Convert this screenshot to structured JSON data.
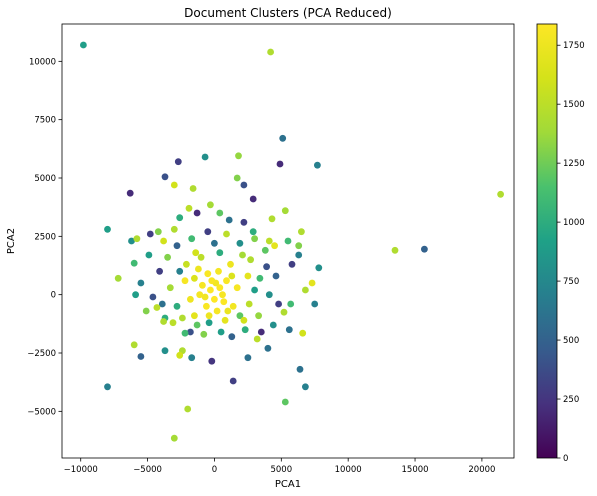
{
  "chart_data": {
    "type": "scatter",
    "title": "Document Clusters (PCA Reduced)",
    "xlabel": "PCA1",
    "ylabel": "PCA2",
    "xlim": [
      -11400,
      22400
    ],
    "ylim": [
      -7000,
      11600
    ],
    "xticks": [
      -10000,
      -5000,
      0,
      5000,
      10000,
      15000,
      20000
    ],
    "yticks": [
      -5000,
      -2500,
      0,
      2500,
      5000,
      7500,
      10000
    ],
    "grid": false,
    "colorbar": {
      "colormap": "viridis",
      "range": [
        0,
        1840
      ],
      "ticks": [
        0,
        250,
        500,
        750,
        1000,
        1250,
        1500,
        1750
      ]
    },
    "points": [
      {
        "x": -9800,
        "y": 10700,
        "c": 900
      },
      {
        "x": 4200,
        "y": 10400,
        "c": 1450
      },
      {
        "x": 5100,
        "y": 6700,
        "c": 600
      },
      {
        "x": 7700,
        "y": 5550,
        "c": 700
      },
      {
        "x": 4900,
        "y": 5600,
        "c": 200
      },
      {
        "x": 21400,
        "y": 4300,
        "c": 1450
      },
      {
        "x": 13500,
        "y": 1900,
        "c": 1450
      },
      {
        "x": 15700,
        "y": 1950,
        "c": 500
      },
      {
        "x": -2700,
        "y": 5700,
        "c": 300
      },
      {
        "x": -700,
        "y": 5900,
        "c": 800
      },
      {
        "x": 1800,
        "y": 5950,
        "c": 1350
      },
      {
        "x": -6300,
        "y": 4350,
        "c": 200
      },
      {
        "x": -3700,
        "y": 5050,
        "c": 400
      },
      {
        "x": -1600,
        "y": 4550,
        "c": 1450
      },
      {
        "x": -3000,
        "y": 4700,
        "c": 1600
      },
      {
        "x": 1700,
        "y": 5000,
        "c": 1300
      },
      {
        "x": 2200,
        "y": 4700,
        "c": 400
      },
      {
        "x": 2900,
        "y": 4100,
        "c": 200
      },
      {
        "x": 4300,
        "y": 3250,
        "c": 1450
      },
      {
        "x": 5300,
        "y": 3600,
        "c": 1400
      },
      {
        "x": -8000,
        "y": 2800,
        "c": 900
      },
      {
        "x": -6200,
        "y": 2300,
        "c": 800
      },
      {
        "x": -5800,
        "y": 2400,
        "c": 1450
      },
      {
        "x": -4800,
        "y": 2600,
        "c": 300
      },
      {
        "x": -4200,
        "y": 2700,
        "c": 1300
      },
      {
        "x": -3800,
        "y": 2300,
        "c": 1600
      },
      {
        "x": -2600,
        "y": 3300,
        "c": 1000
      },
      {
        "x": -1900,
        "y": 3700,
        "c": 1500
      },
      {
        "x": -1300,
        "y": 3500,
        "c": 200
      },
      {
        "x": -300,
        "y": 3850,
        "c": 1400
      },
      {
        "x": 400,
        "y": 3500,
        "c": 1200
      },
      {
        "x": 1100,
        "y": 3200,
        "c": 600
      },
      {
        "x": 2200,
        "y": 3100,
        "c": 300
      },
      {
        "x": 3000,
        "y": 2400,
        "c": 1300
      },
      {
        "x": 4100,
        "y": 2300,
        "c": 1500
      },
      {
        "x": 4500,
        "y": 2100,
        "c": 1700
      },
      {
        "x": 5500,
        "y": 2300,
        "c": 1100
      },
      {
        "x": 6500,
        "y": 2700,
        "c": 1450
      },
      {
        "x": 6300,
        "y": 2100,
        "c": 1300
      },
      {
        "x": 6300,
        "y": 1700,
        "c": 700
      },
      {
        "x": 5800,
        "y": 1300,
        "c": 300
      },
      {
        "x": 7800,
        "y": 1150,
        "c": 800
      },
      {
        "x": 7300,
        "y": 500,
        "c": 1700
      },
      {
        "x": 6800,
        "y": 200,
        "c": 1450
      },
      {
        "x": 7500,
        "y": -400,
        "c": 700
      },
      {
        "x": -7200,
        "y": 700,
        "c": 1400
      },
      {
        "x": -6000,
        "y": 1350,
        "c": 1100
      },
      {
        "x": -5500,
        "y": 500,
        "c": 700
      },
      {
        "x": -5900,
        "y": 0,
        "c": 900
      },
      {
        "x": -4600,
        "y": -100,
        "c": 400
      },
      {
        "x": -4300,
        "y": -550,
        "c": 1500
      },
      {
        "x": -5100,
        "y": -700,
        "c": 1300
      },
      {
        "x": -3700,
        "y": -1000,
        "c": 1000
      },
      {
        "x": -3100,
        "y": -1200,
        "c": 1500
      },
      {
        "x": -3800,
        "y": -1150,
        "c": 1450
      },
      {
        "x": -6000,
        "y": -2150,
        "c": 1450
      },
      {
        "x": -5500,
        "y": -2650,
        "c": 500
      },
      {
        "x": -3700,
        "y": -2400,
        "c": 800
      },
      {
        "x": -2400,
        "y": -2400,
        "c": 1450
      },
      {
        "x": -2600,
        "y": -2600,
        "c": 1600
      },
      {
        "x": -1700,
        "y": -2700,
        "c": 700
      },
      {
        "x": -200,
        "y": -2850,
        "c": 250
      },
      {
        "x": 2500,
        "y": -2700,
        "c": 600
      },
      {
        "x": 4000,
        "y": -2300,
        "c": 600
      },
      {
        "x": 6400,
        "y": -3200,
        "c": 600
      },
      {
        "x": 6800,
        "y": -3950,
        "c": 700
      },
      {
        "x": 1400,
        "y": -3700,
        "c": 300
      },
      {
        "x": 5300,
        "y": -4600,
        "c": 1200
      },
      {
        "x": -8000,
        "y": -3950,
        "c": 700
      },
      {
        "x": -2000,
        "y": -4900,
        "c": 1450
      },
      {
        "x": -3000,
        "y": -6150,
        "c": 1400
      },
      {
        "x": 6600,
        "y": -1650,
        "c": 1600
      },
      {
        "x": 5600,
        "y": -1500,
        "c": 600
      },
      {
        "x": 5200,
        "y": -750,
        "c": 1450
      },
      {
        "x": 5700,
        "y": -400,
        "c": 1100
      },
      {
        "x": 4400,
        "y": -1300,
        "c": 800
      },
      {
        "x": 3500,
        "y": -1600,
        "c": 200
      },
      {
        "x": 2300,
        "y": -1500,
        "c": 1000
      },
      {
        "x": 1300,
        "y": -1800,
        "c": 500
      },
      {
        "x": -800,
        "y": -1700,
        "c": 1300
      },
      {
        "x": -1800,
        "y": -1600,
        "c": 400
      },
      {
        "x": -2200,
        "y": -1650,
        "c": 1100
      },
      {
        "x": 3400,
        "y": 700,
        "c": 1100
      },
      {
        "x": 3900,
        "y": 1200,
        "c": 400
      },
      {
        "x": 2700,
        "y": 1500,
        "c": 1450
      },
      {
        "x": 1900,
        "y": 2200,
        "c": 800
      },
      {
        "x": 900,
        "y": 2600,
        "c": 1500
      },
      {
        "x": -500,
        "y": 2700,
        "c": 300
      },
      {
        "x": -1700,
        "y": 2400,
        "c": 1100
      },
      {
        "x": -2800,
        "y": 2100,
        "c": 500
      },
      {
        "x": -3500,
        "y": 1600,
        "c": 1300
      },
      {
        "x": -2600,
        "y": 1000,
        "c": 700
      },
      {
        "x": -1400,
        "y": 1800,
        "c": 1600
      },
      {
        "x": 400,
        "y": 1800,
        "c": 1000
      },
      {
        "x": 2500,
        "y": 800,
        "c": 1700
      },
      {
        "x": 3000,
        "y": 200,
        "c": 900
      },
      {
        "x": 2600,
        "y": -400,
        "c": 1500
      },
      {
        "x": 1900,
        "y": -900,
        "c": 1200
      },
      {
        "x": 800,
        "y": -1100,
        "c": 1700
      },
      {
        "x": -400,
        "y": -1200,
        "c": 900
      },
      {
        "x": -1500,
        "y": -900,
        "c": 1700
      },
      {
        "x": -2800,
        "y": -500,
        "c": 1000
      },
      {
        "x": -3300,
        "y": 300,
        "c": 1400
      },
      {
        "x": -2200,
        "y": 600,
        "c": 1800
      },
      {
        "x": -1200,
        "y": 1100,
        "c": 1750
      },
      {
        "x": 1200,
        "y": 1300,
        "c": 1750
      },
      {
        "x": 1700,
        "y": 300,
        "c": 1800
      },
      {
        "x": 1400,
        "y": -500,
        "c": 1780
      },
      {
        "x": -1800,
        "y": -200,
        "c": 1760
      },
      {
        "x": -900,
        "y": 400,
        "c": 1800
      },
      {
        "x": -500,
        "y": 900,
        "c": 1820
      },
      {
        "x": 300,
        "y": 1000,
        "c": 1790
      },
      {
        "x": 900,
        "y": 600,
        "c": 1810
      },
      {
        "x": 700,
        "y": -300,
        "c": 1830
      },
      {
        "x": 200,
        "y": -700,
        "c": 1800
      },
      {
        "x": -600,
        "y": -500,
        "c": 1820
      },
      {
        "x": -1100,
        "y": 0,
        "c": 1790
      },
      {
        "x": -300,
        "y": 200,
        "c": 1840
      },
      {
        "x": 400,
        "y": 300,
        "c": 1830
      },
      {
        "x": 0,
        "y": -200,
        "c": 1840
      },
      {
        "x": -200,
        "y": 600,
        "c": 1810
      },
      {
        "x": 600,
        "y": 0,
        "c": 1800
      },
      {
        "x": 100,
        "y": 500,
        "c": 1780
      },
      {
        "x": -700,
        "y": -100,
        "c": 1770
      },
      {
        "x": -400,
        "y": -900,
        "c": 1750
      },
      {
        "x": 1000,
        "y": -700,
        "c": 1740
      },
      {
        "x": 1300,
        "y": 800,
        "c": 1650
      },
      {
        "x": -1500,
        "y": 700,
        "c": 1650
      },
      {
        "x": -2100,
        "y": 1300,
        "c": 1550
      },
      {
        "x": -1000,
        "y": 1600,
        "c": 1500
      },
      {
        "x": 2100,
        "y": 1700,
        "c": 1400
      },
      {
        "x": 3300,
        "y": -900,
        "c": 1350
      },
      {
        "x": -2400,
        "y": -1000,
        "c": 1450
      },
      {
        "x": 2200,
        "y": -1100,
        "c": 1600
      },
      {
        "x": 4100,
        "y": 0,
        "c": 800
      },
      {
        "x": 4600,
        "y": 800,
        "c": 500
      },
      {
        "x": -4100,
        "y": 1000,
        "c": 300
      },
      {
        "x": -3900,
        "y": -400,
        "c": 600
      },
      {
        "x": -4900,
        "y": 1700,
        "c": 900
      },
      {
        "x": 4800,
        "y": -400,
        "c": 300
      },
      {
        "x": 3800,
        "y": 1900,
        "c": 1200
      },
      {
        "x": -3000,
        "y": 2800,
        "c": 1450
      },
      {
        "x": 3200,
        "y": -1900,
        "c": 1500
      },
      {
        "x": 500,
        "y": -1600,
        "c": 900
      },
      {
        "x": -1300,
        "y": -1300,
        "c": 1200
      },
      {
        "x": 0,
        "y": 2200,
        "c": 600
      },
      {
        "x": 2900,
        "y": 2700,
        "c": 1000
      }
    ]
  }
}
